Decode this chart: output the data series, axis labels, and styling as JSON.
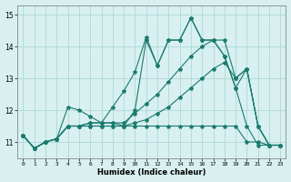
{
  "x": [
    0,
    1,
    2,
    3,
    4,
    5,
    6,
    7,
    8,
    9,
    10,
    11,
    12,
    13,
    14,
    15,
    16,
    17,
    18,
    19,
    20,
    21,
    22,
    23
  ],
  "s1": [
    11.2,
    10.8,
    11.0,
    11.1,
    11.5,
    11.5,
    11.5,
    11.5,
    11.5,
    11.5,
    11.5,
    11.5,
    11.5,
    11.5,
    11.5,
    11.5,
    11.5,
    11.5,
    11.5,
    11.5,
    11.0,
    11.0,
    10.9,
    10.9
  ],
  "s2": [
    11.2,
    10.8,
    11.0,
    11.1,
    12.1,
    12.0,
    11.8,
    11.6,
    11.6,
    11.5,
    12.0,
    14.2,
    13.4,
    14.2,
    14.2,
    14.9,
    14.2,
    14.2,
    13.7,
    12.7,
    11.5,
    10.9,
    10.9,
    10.9
  ],
  "s3": [
    11.2,
    10.8,
    11.0,
    11.1,
    11.5,
    11.5,
    11.6,
    11.6,
    12.1,
    12.6,
    13.2,
    14.3,
    13.4,
    14.2,
    14.2,
    14.9,
    14.2,
    14.2,
    13.7,
    12.7,
    13.3,
    11.5,
    10.9,
    10.9
  ],
  "s4": [
    11.2,
    10.8,
    11.0,
    11.1,
    11.5,
    11.5,
    11.6,
    11.6,
    11.6,
    11.6,
    11.9,
    12.2,
    12.5,
    12.9,
    13.3,
    13.7,
    14.0,
    14.2,
    14.2,
    13.0,
    13.3,
    11.5,
    10.9,
    10.9
  ],
  "s5": [
    11.2,
    10.8,
    11.0,
    11.1,
    11.5,
    11.5,
    11.5,
    11.5,
    11.5,
    11.5,
    11.6,
    11.7,
    11.9,
    12.1,
    12.4,
    12.7,
    13.0,
    13.3,
    13.5,
    13.0,
    13.3,
    11.5,
    10.9,
    10.9
  ],
  "color": "#1a7a6e",
  "bg_color": "#d8f0f0",
  "grid_color": "#afd8d8",
  "xlabel": "Humidex (Indice chaleur)",
  "ylim": [
    10.5,
    15.3
  ],
  "xlim": [
    -0.5,
    23.5
  ],
  "yticks": [
    11,
    12,
    13,
    14,
    15
  ],
  "xticks": [
    0,
    1,
    2,
    3,
    4,
    5,
    6,
    7,
    8,
    9,
    10,
    11,
    12,
    13,
    14,
    15,
    16,
    17,
    18,
    19,
    20,
    21,
    22,
    23
  ]
}
